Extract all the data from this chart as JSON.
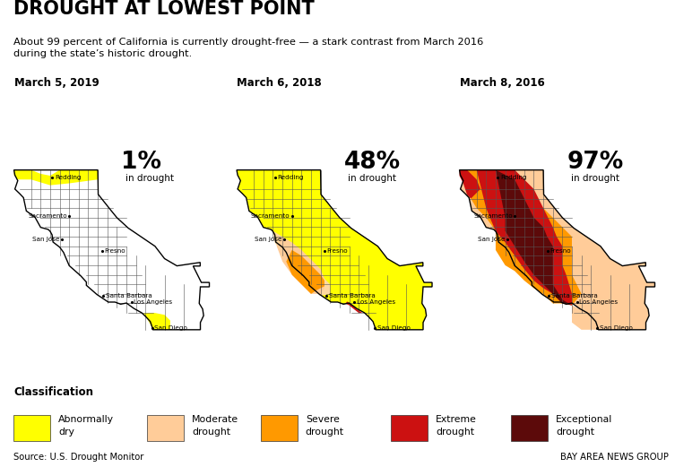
{
  "title": "DROUGHT AT LOWEST POINT",
  "subtitle": "About 99 percent of California is currently drought-free — a stark contrast from March 2016\nduring the state’s historic drought.",
  "maps": [
    {
      "date": "March 5, 2019",
      "percent": "1%",
      "label": "in drought"
    },
    {
      "date": "March 6, 2018",
      "percent": "48%",
      "label": "in drought"
    },
    {
      "date": "March 8, 2016",
      "percent": "97%",
      "label": "in drought"
    }
  ],
  "legend": [
    {
      "color": "#FFFF00",
      "label1": "Abnormally",
      "label2": "dry"
    },
    {
      "color": "#FFCC99",
      "label1": "Moderate",
      "label2": "drought"
    },
    {
      "color": "#FF9900",
      "label1": "Severe",
      "label2": "drought"
    },
    {
      "color": "#CC1111",
      "label1": "Extreme",
      "label2": "drought"
    },
    {
      "color": "#5C0A0A",
      "label1": "Exceptional",
      "label2": "drought"
    }
  ],
  "source": "Source: U.S. Drought Monitor",
  "credit": "BAY AREA NEWS GROUP",
  "bg_color": "#FFFFFF"
}
